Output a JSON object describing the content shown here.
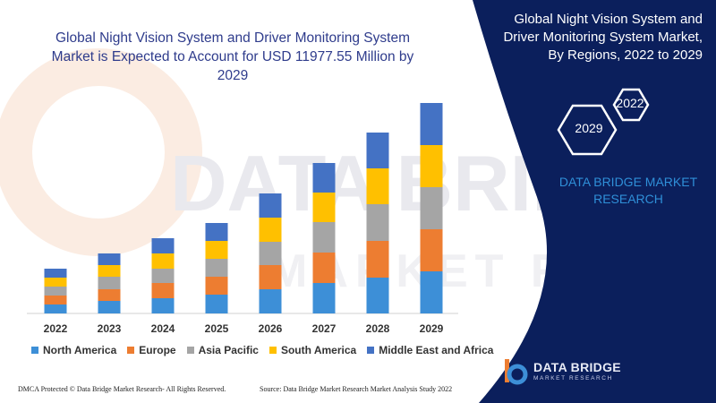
{
  "chart_data": {
    "type": "bar",
    "stacked": true,
    "title": "Global Night Vision System and Driver Monitoring System Market is Expected to Account for USD 11977.55 Million by 2029",
    "categories": [
      "2022",
      "2023",
      "2024",
      "2025",
      "2026",
      "2027",
      "2028",
      "2029"
    ],
    "ylim": [
      0,
      240
    ],
    "grid": false,
    "legend_position": "bottom",
    "series": [
      {
        "name": "North America",
        "color": "#3d8fd7",
        "values": [
          10,
          14,
          17,
          21,
          27,
          34,
          40,
          47
        ]
      },
      {
        "name": "Europe",
        "color": "#ed7d31",
        "values": [
          10,
          13,
          17,
          20,
          27,
          34,
          41,
          47
        ]
      },
      {
        "name": "Asia Pacific",
        "color": "#a5a5a5",
        "values": [
          10,
          14,
          16,
          20,
          26,
          34,
          41,
          47
        ]
      },
      {
        "name": "South America",
        "color": "#ffc000",
        "values": [
          10,
          13,
          17,
          20,
          27,
          33,
          40,
          47
        ]
      },
      {
        "name": "Middle East and Africa",
        "color": "#4472c4",
        "values": [
          10,
          13,
          17,
          20,
          27,
          33,
          40,
          47
        ]
      }
    ]
  },
  "panel": {
    "title": "Global Night Vision System and Driver Monitoring System Market, By Regions, 2022 to 2029",
    "hex_start": "2022",
    "hex_end": "2029",
    "brand_text": "DATA BRIDGE MARKET RESEARCH"
  },
  "logo": {
    "name": "DATA BRIDGE",
    "sub": "MARKET RESEARCH"
  },
  "watermark": {
    "line1": "DATA BRIDGE",
    "line2": "MARKET RESEARCH"
  },
  "footer": {
    "left": "DMCA Protected © Data Bridge Market Research- All Rights Reserved.",
    "right": "Source: Data Bridge Market Research Market Analysis Study 2022"
  },
  "colors": {
    "panel_bg": "#0b1f5c",
    "title_color": "#2f3c8c",
    "accent_blue": "#2f8fd8"
  }
}
